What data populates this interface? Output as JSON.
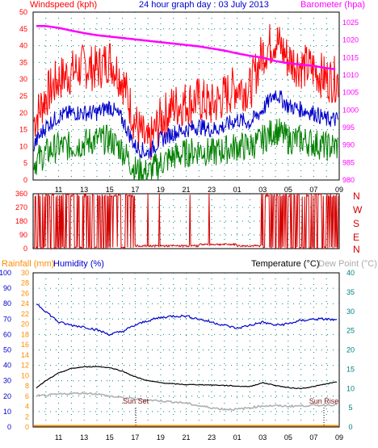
{
  "header_top": {
    "left": "Windspeed (kph)",
    "center": "24 hour graph day : 03 July 2013",
    "right": "Barometer (hpa)"
  },
  "header_bottom": {
    "rainfall": "Rainfall (mm)",
    "humidity": "Humidity (%)",
    "temperature": "Temperature (°C)",
    "dewpoint": "Dew Point (°C)"
  },
  "colors": {
    "gust": "#ff0000",
    "wind_avg": "#0000cc",
    "wind_min": "#008000",
    "barometer": "#ff00ff",
    "direction": "#d40000",
    "humidity": "#0000cc",
    "temperature": "#000000",
    "dewpoint": "#b0b0b0",
    "rain": "#ff8c00",
    "axis_rain": "#ff8c00",
    "axis_hum": "#0000cc",
    "axis_temp": "#008080"
  },
  "x_ticks": [
    "11",
    "13",
    "15",
    "17",
    "19",
    "21",
    "23",
    "01",
    "03",
    "05",
    "07",
    "09"
  ],
  "chart_data": [
    {
      "type": "line",
      "title": "24 hour graph day : 03 July 2013",
      "x_range_hours": [
        9,
        33
      ],
      "left_axis": {
        "label": "Windspeed (kph)",
        "ylim": [
          0,
          50
        ],
        "ticks": [
          0,
          5,
          10,
          15,
          20,
          25,
          30,
          35,
          40,
          45,
          50
        ]
      },
      "right_axis": {
        "label": "Barometer (hpa)",
        "ylim": [
          980,
          1028
        ],
        "ticks": [
          980,
          985,
          990,
          995,
          1000,
          1005,
          1010,
          1015,
          1020,
          1025
        ]
      },
      "series": [
        {
          "key": "gust",
          "x": [
            9,
            10,
            11,
            12,
            13,
            14,
            15,
            16,
            17,
            18,
            19,
            20,
            21,
            22,
            23,
            24,
            25,
            26,
            27,
            28,
            29,
            30,
            31,
            32,
            33
          ],
          "values": [
            17,
            25,
            30,
            32,
            34,
            33,
            36,
            30,
            17,
            10,
            18,
            22,
            23,
            24,
            22,
            25,
            28,
            27,
            38,
            42,
            36,
            34,
            33,
            30,
            30
          ]
        },
        {
          "key": "wind_avg",
          "x": [
            9,
            10,
            11,
            12,
            13,
            14,
            15,
            16,
            17,
            18,
            19,
            20,
            21,
            22,
            23,
            24,
            25,
            26,
            27,
            28,
            29,
            30,
            31,
            32,
            33
          ],
          "values": [
            10,
            16,
            19,
            20,
            20,
            20,
            22,
            18,
            10,
            8,
            12,
            14,
            15,
            16,
            15,
            16,
            18,
            17,
            21,
            26,
            22,
            21,
            20,
            18,
            18
          ]
        },
        {
          "key": "wind_min",
          "x": [
            9,
            10,
            11,
            12,
            13,
            14,
            15,
            16,
            17,
            18,
            19,
            20,
            21,
            22,
            23,
            24,
            25,
            26,
            27,
            28,
            29,
            30,
            31,
            32,
            33
          ],
          "values": [
            5,
            8,
            10,
            10,
            11,
            12,
            12,
            9,
            3,
            2,
            5,
            7,
            8,
            9,
            8,
            9,
            10,
            10,
            12,
            15,
            12,
            12,
            11,
            10,
            10
          ]
        },
        {
          "key": "barometer",
          "x": [
            9,
            10,
            11,
            12,
            13,
            14,
            15,
            16,
            17,
            18,
            19,
            20,
            21,
            22,
            23,
            24,
            25,
            26,
            27,
            28,
            29,
            30,
            31,
            32,
            33
          ],
          "values": [
            1024,
            1024,
            1023.5,
            1022.7,
            1022,
            1021.4,
            1021,
            1020.6,
            1020.2,
            1019.8,
            1019.4,
            1019,
            1018.6,
            1018.2,
            1017.6,
            1017,
            1016.2,
            1015.5,
            1015,
            1014,
            1013.4,
            1013,
            1012.6,
            1012,
            1011.5
          ]
        }
      ]
    },
    {
      "type": "line",
      "x_range_hours": [
        9,
        33
      ],
      "y_labels": [
        "360",
        "270",
        "180",
        "90",
        "0"
      ],
      "compass": [
        "N",
        "W",
        "S",
        "E",
        "N"
      ],
      "ylim": [
        0,
        360
      ],
      "series": [
        {
          "key": "direction",
          "segments": [
            {
              "from": 9,
              "to": 17,
              "mode": "north_flip"
            },
            {
              "from": 17,
              "to": 27,
              "mode": "south_low"
            },
            {
              "from": 27,
              "to": 33,
              "mode": "north_flip"
            }
          ]
        }
      ]
    },
    {
      "type": "line",
      "x_range_hours": [
        9,
        33
      ],
      "axes": {
        "humidity": {
          "label": "Humidity (%)",
          "ylim": [
            0,
            100
          ],
          "ticks": [
            0,
            10,
            20,
            30,
            40,
            50,
            60,
            70,
            80,
            90,
            100
          ]
        },
        "rainfall": {
          "label": "Rainfall (mm)",
          "ylim": [
            0,
            30
          ],
          "ticks": [
            0,
            2,
            4,
            6,
            8,
            10,
            12,
            14,
            16,
            18,
            20,
            22,
            24,
            26,
            28,
            30
          ]
        },
        "temperature": {
          "label": "Temperature (°C)",
          "ylim": [
            0,
            40
          ],
          "ticks": [
            0,
            5,
            10,
            15,
            20,
            25,
            30,
            35,
            40
          ]
        }
      },
      "annotations": [
        {
          "text": "Sun Set",
          "x": 17.05
        },
        {
          "text": "Sun Rise",
          "x": 31.8
        }
      ],
      "series": [
        {
          "key": "humidity",
          "axis": "humidity",
          "x": [
            9,
            10,
            11,
            12,
            13,
            14,
            15,
            16,
            17,
            18,
            19,
            20,
            21,
            22,
            23,
            24,
            25,
            26,
            27,
            28,
            29,
            30,
            31,
            32,
            33
          ],
          "values": [
            82,
            75,
            68,
            66,
            65,
            63,
            60,
            62,
            66,
            69,
            71,
            72,
            72,
            70,
            68,
            66,
            64,
            66,
            68,
            66,
            67,
            69,
            70,
            70,
            69
          ]
        },
        {
          "key": "temperature",
          "axis": "temperature",
          "x": [
            9,
            10,
            11,
            12,
            13,
            14,
            15,
            16,
            17,
            18,
            19,
            20,
            21,
            22,
            23,
            24,
            25,
            26,
            27,
            28,
            29,
            30,
            31,
            32,
            33
          ],
          "values": [
            9.5,
            12,
            14,
            15.2,
            15.6,
            15.7,
            15.4,
            14.5,
            13,
            12,
            11.5,
            11.2,
            11,
            11,
            10.9,
            10.8,
            10.6,
            10.5,
            11.5,
            10.8,
            10.2,
            10,
            10.5,
            11.2,
            11.8
          ]
        },
        {
          "key": "dewpoint",
          "axis": "temperature",
          "x": [
            9,
            10,
            11,
            12,
            13,
            14,
            15,
            16,
            17,
            18,
            19,
            20,
            21,
            22,
            23,
            24,
            25,
            26,
            27,
            28,
            29,
            30,
            31,
            32,
            33
          ],
          "values": [
            8,
            8.2,
            8.5,
            8.7,
            8.8,
            8.6,
            8.0,
            7.6,
            7.3,
            7.0,
            6.8,
            6.5,
            6.2,
            5.5,
            5,
            4.6,
            4.6,
            5.0,
            5.5,
            5.5,
            5.4,
            5.5,
            5.6,
            5.7,
            5.8
          ]
        },
        {
          "key": "rain",
          "axis": "rainfall",
          "x": [
            9,
            33
          ],
          "values": [
            0,
            0
          ]
        }
      ]
    }
  ]
}
